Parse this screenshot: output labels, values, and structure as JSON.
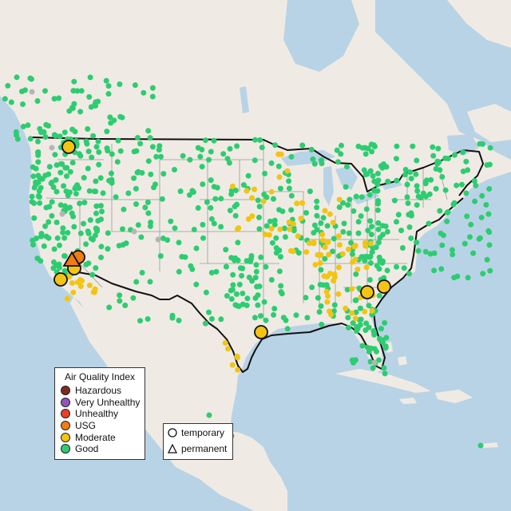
{
  "legend": {
    "title": "Air Quality Index",
    "categories": [
      {
        "label": "Hazardous",
        "color": "#7e2a22"
      },
      {
        "label": "Very Unhealthy",
        "color": "#8f56b8"
      },
      {
        "label": "Unhealthy",
        "color": "#e8402a"
      },
      {
        "label": "USG",
        "color": "#f07c12"
      },
      {
        "label": "Moderate",
        "color": "#f2c414"
      },
      {
        "label": "Good",
        "color": "#2ecc71"
      }
    ]
  },
  "monitor_types": {
    "temporary_label": "temporary",
    "permanent_label": "permanent"
  },
  "colors": {
    "ocean": "#b9d3e6",
    "land": "#efebe4",
    "us_border": "#111111",
    "state_border": "#9a9a9a",
    "great_lakes": "#b9d3e6"
  }
}
